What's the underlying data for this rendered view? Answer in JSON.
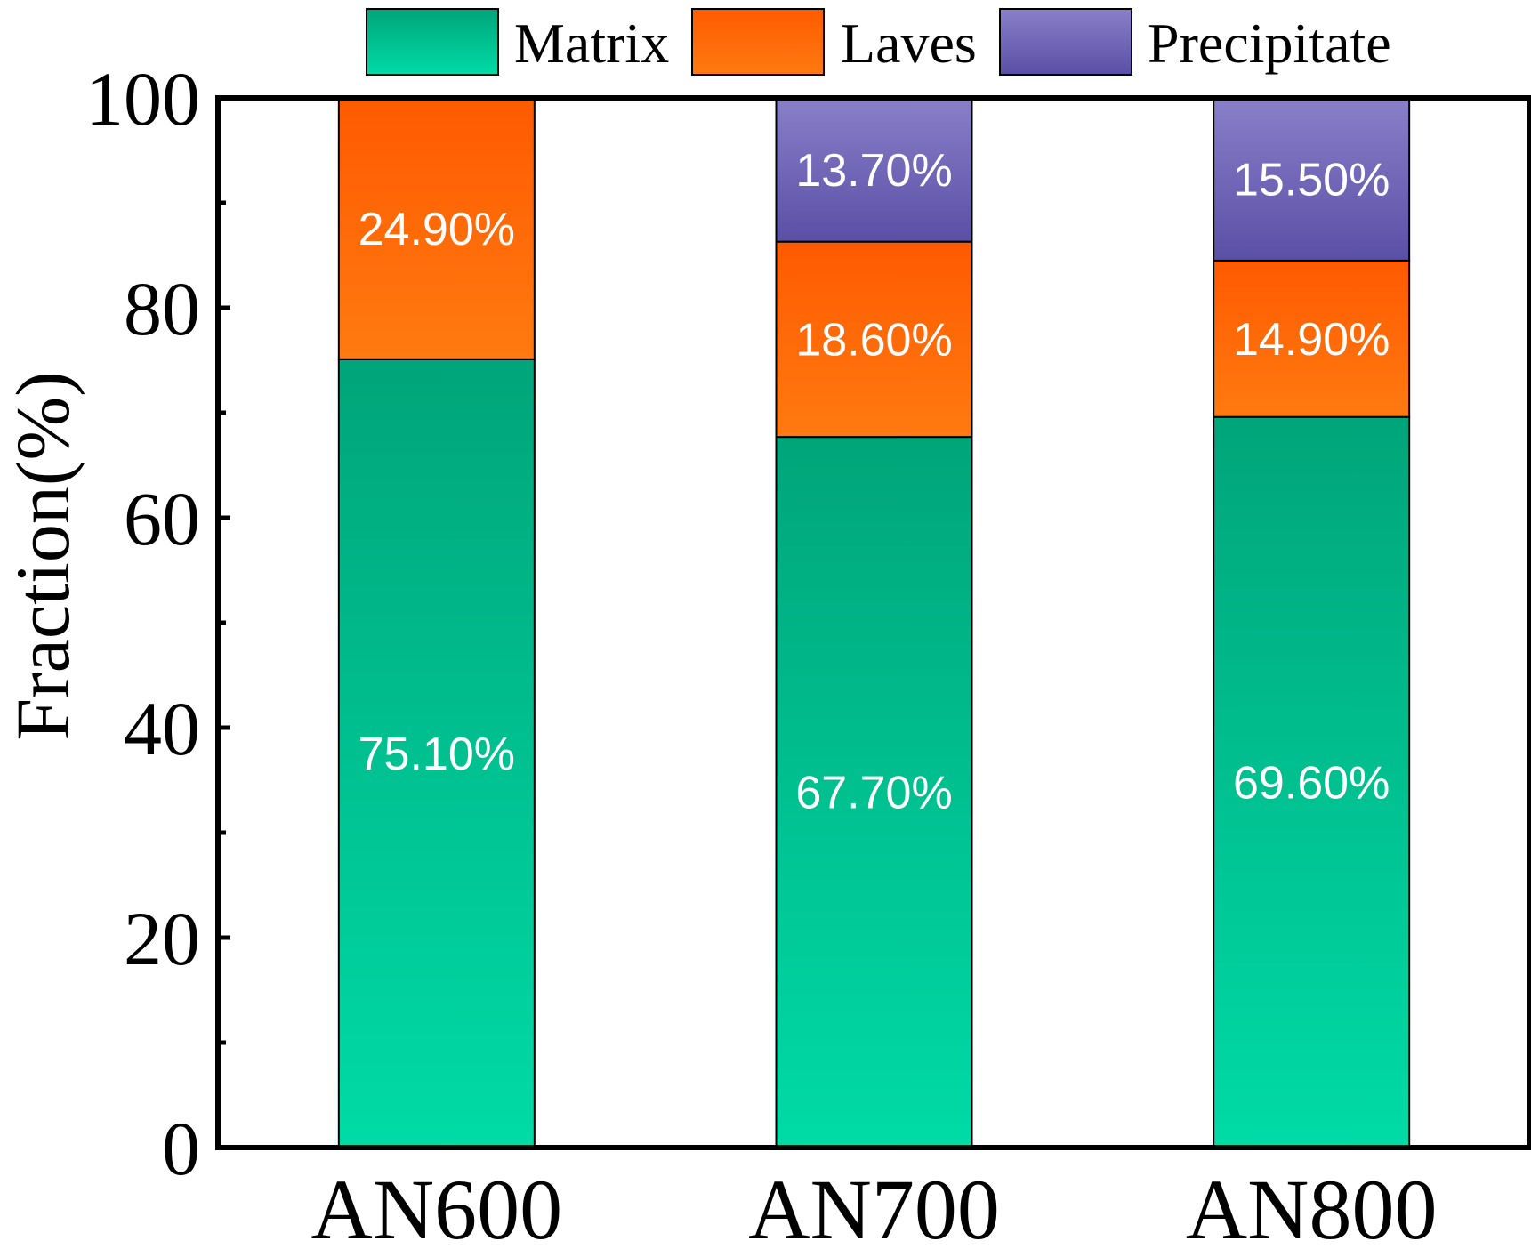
{
  "chart_data": {
    "type": "bar",
    "stacked": true,
    "title": "",
    "xlabel": "",
    "ylabel": "Fraction(%)",
    "ylim": [
      0,
      100
    ],
    "yticks": [
      0,
      20,
      40,
      60,
      80,
      100
    ],
    "categories": [
      "AN600",
      "AN700",
      "AN800"
    ],
    "series": [
      {
        "name": "Matrix",
        "values": [
          75.1,
          67.7,
          69.6
        ],
        "labels": [
          "75.10%",
          "67.70%",
          "69.60%"
        ],
        "color_top": "#00a57a",
        "color_bottom": "#00dba6"
      },
      {
        "name": "Laves",
        "values": [
          24.9,
          18.6,
          14.9
        ],
        "labels": [
          "24.90%",
          "18.60%",
          "14.90%"
        ],
        "color_top": "#ff5a00",
        "color_bottom": "#ff7a10"
      },
      {
        "name": "Precipitate",
        "values": [
          0,
          13.7,
          15.5
        ],
        "labels": [
          "",
          "13.70%",
          "15.50%"
        ],
        "color_top": "#8a7fc8",
        "color_bottom": "#5a4fa6"
      }
    ],
    "legend": {
      "placement": "top",
      "entries": [
        "Matrix",
        "Laves",
        "Precipitate"
      ]
    }
  }
}
